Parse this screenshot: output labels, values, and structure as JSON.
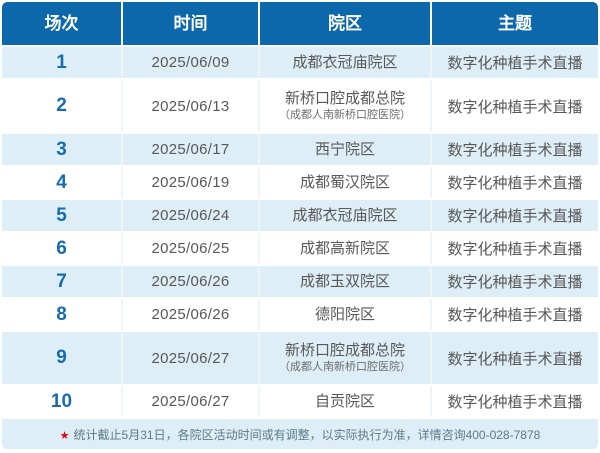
{
  "table": {
    "headers": [
      "场次",
      "时间",
      "院区",
      "主题"
    ],
    "rows": [
      {
        "session": "1",
        "date": "2025/06/09",
        "campus": "成都衣冠庙院区",
        "campus_sub": "",
        "topic": "数字化种植手术直播"
      },
      {
        "session": "2",
        "date": "2025/06/13",
        "campus": "新桥口腔成都总院",
        "campus_sub": "（成都人南新桥口腔医院）",
        "topic": "数字化种植手术直播"
      },
      {
        "session": "3",
        "date": "2025/06/17",
        "campus": "西宁院区",
        "campus_sub": "",
        "topic": "数字化种植手术直播"
      },
      {
        "session": "4",
        "date": "2025/06/19",
        "campus": "成都蜀汉院区",
        "campus_sub": "",
        "topic": "数字化种植手术直播"
      },
      {
        "session": "5",
        "date": "2025/06/24",
        "campus": "成都衣冠庙院区",
        "campus_sub": "",
        "topic": "数字化种植手术直播"
      },
      {
        "session": "6",
        "date": "2025/06/25",
        "campus": "成都高新院区",
        "campus_sub": "",
        "topic": "数字化种植手术直播"
      },
      {
        "session": "7",
        "date": "2025/06/26",
        "campus": "成都玉双院区",
        "campus_sub": "",
        "topic": "数字化种植手术直播"
      },
      {
        "session": "8",
        "date": "2025/06/26",
        "campus": "德阳院区",
        "campus_sub": "",
        "topic": "数字化种植手术直播"
      },
      {
        "session": "9",
        "date": "2025/06/27",
        "campus": "新桥口腔成都总院",
        "campus_sub": "（成都人南新桥口腔医院）",
        "topic": "数字化种植手术直播"
      },
      {
        "session": "10",
        "date": "2025/06/27",
        "campus": "自贡院区",
        "campus_sub": "",
        "topic": "数字化种植手术直播"
      }
    ],
    "footnote": {
      "star": "★",
      "text": "统计截止5月31日，各院区活动时间或有调整，以实际执行为准，详情咨询400-028-7878"
    }
  },
  "colors": {
    "header_bg": "#0d67ab",
    "zebra_blue": "#ddeef7",
    "number_blue": "#156cae",
    "body_text": "#595757",
    "footnote_text": "#5b7a8a",
    "star_red": "#e60012"
  }
}
